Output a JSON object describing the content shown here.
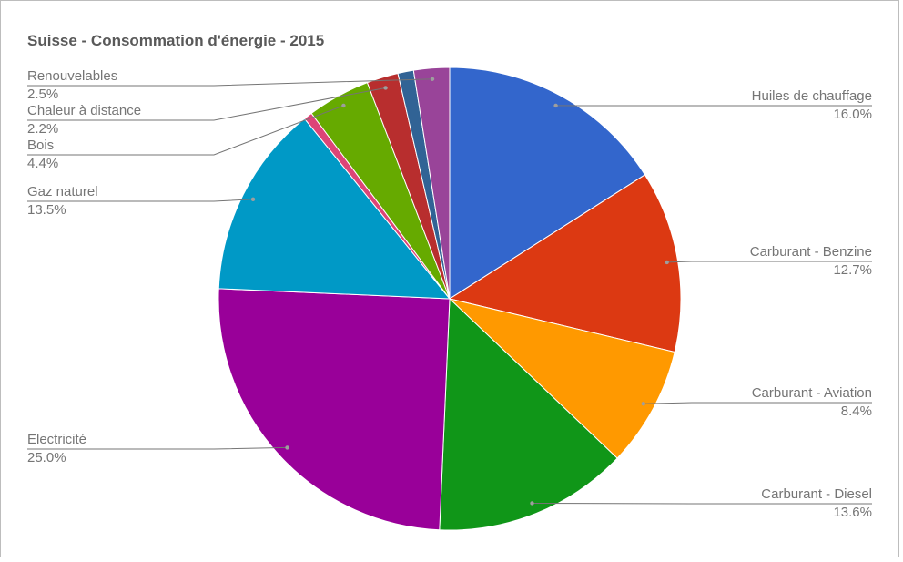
{
  "chart_data": {
    "type": "pie",
    "title": "Suisse - Consommation d'énergie - 2015",
    "categories": [
      "Huiles de chauffage",
      "Carburant - Benzine",
      "Carburant - Aviation",
      "Carburant - Diesel",
      "Electricité",
      "Gaz naturel",
      null,
      "Bois",
      "Chaleur à distance",
      null,
      "Renouvelables"
    ],
    "values": [
      16.0,
      12.7,
      8.4,
      13.6,
      25.0,
      13.5,
      0.6,
      4.4,
      2.2,
      1.1,
      2.5
    ],
    "value_labels": [
      "16.0%",
      "12.7%",
      "8.4%",
      "13.6%",
      "25.0%",
      "13.5%",
      null,
      "4.4%",
      "2.2%",
      null,
      "2.5%"
    ],
    "colors": [
      "#3366cc",
      "#dc3912",
      "#ff9900",
      "#109618",
      "#990099",
      "#0099c6",
      "#dd4477",
      "#66aa00",
      "#b82e2e",
      "#316395",
      "#994499"
    ]
  }
}
